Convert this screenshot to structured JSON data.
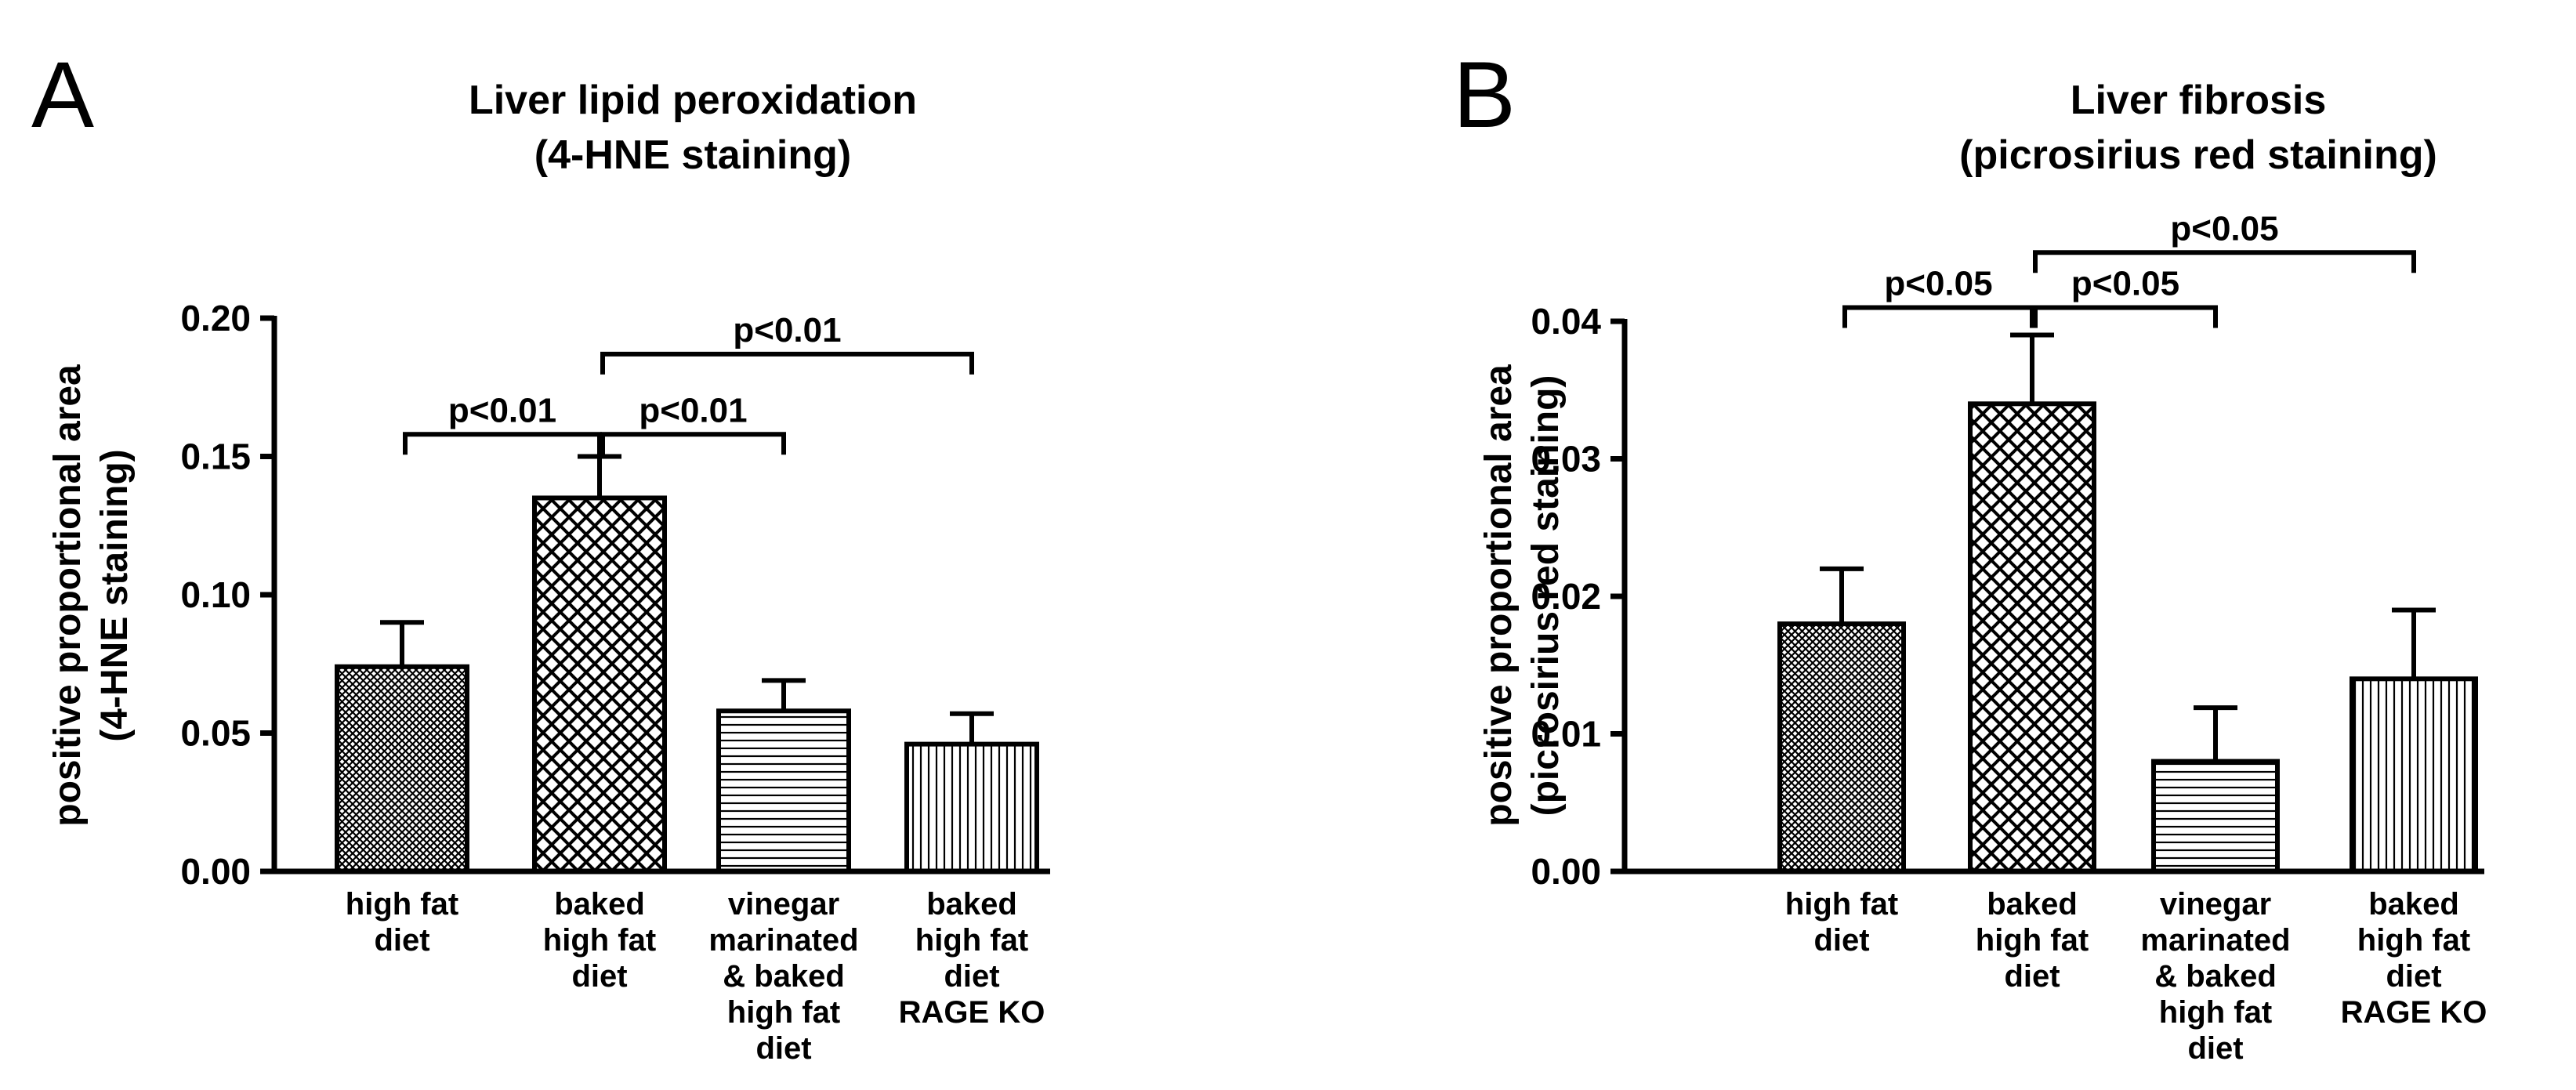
{
  "chart_data": [
    {
      "panel": "A",
      "type": "bar",
      "title": [
        "Liver lipid peroxidation",
        "(4-HNE staining)"
      ],
      "ylabel": [
        "positive proportional area",
        "(4-HNE staining)"
      ],
      "xlabel": "",
      "ylim": [
        0,
        0.2
      ],
      "yticks": [
        0.0,
        0.05,
        0.1,
        0.15,
        0.2
      ],
      "ytick_labels": [
        "0.00",
        "0.05",
        "0.10",
        "0.15",
        "0.20"
      ],
      "categories": [
        [
          "high fat",
          "diet"
        ],
        [
          "baked",
          "high fat",
          "diet"
        ],
        [
          "vinegar",
          "marinated",
          "& baked",
          "high fat",
          "diet"
        ],
        [
          "baked",
          "high fat",
          "diet",
          "RAGE KO"
        ]
      ],
      "patterns": [
        "fine-crosshatch",
        "diamond-crosshatch",
        "horizontal-lines",
        "vertical-lines"
      ],
      "values": [
        0.074,
        0.135,
        0.058,
        0.046
      ],
      "errors": [
        0.016,
        0.015,
        0.011,
        0.011
      ],
      "significance": [
        {
          "from": 0,
          "to": 1,
          "label": "p<0.01",
          "level": 0.158
        },
        {
          "from": 1,
          "to": 2,
          "label": "p<0.01",
          "level": 0.158
        },
        {
          "from": 1,
          "to": 3,
          "label": "p<0.01",
          "level": 0.187
        }
      ]
    },
    {
      "panel": "B",
      "type": "bar",
      "title": [
        "Liver fibrosis",
        "(picrosirius red staining)"
      ],
      "ylabel": [
        "positive proportional area",
        "(picrosirius red staining)"
      ],
      "xlabel": "",
      "ylim": [
        0,
        0.04
      ],
      "yticks": [
        0.0,
        0.01,
        0.02,
        0.03,
        0.04
      ],
      "ytick_labels": [
        "0.00",
        "0.01",
        "0.02",
        "0.03",
        "0.04"
      ],
      "categories": [
        [
          "high fat",
          "diet"
        ],
        [
          "baked",
          "high fat",
          "diet"
        ],
        [
          "vinegar",
          "marinated",
          "& baked",
          "high fat",
          "diet"
        ],
        [
          "baked",
          "high fat",
          "diet",
          "RAGE KO"
        ]
      ],
      "patterns": [
        "fine-crosshatch",
        "diamond-crosshatch",
        "horizontal-lines",
        "vertical-lines"
      ],
      "values": [
        0.018,
        0.034,
        0.008,
        0.014
      ],
      "errors": [
        0.004,
        0.005,
        0.0039,
        0.005
      ],
      "significance": [
        {
          "from": 0,
          "to": 1,
          "label": "p<0.05",
          "level": 0.041
        },
        {
          "from": 1,
          "to": 2,
          "label": "p<0.05",
          "level": 0.041
        },
        {
          "from": 1,
          "to": 3,
          "label": "p<0.05",
          "level": 0.045
        }
      ]
    }
  ]
}
